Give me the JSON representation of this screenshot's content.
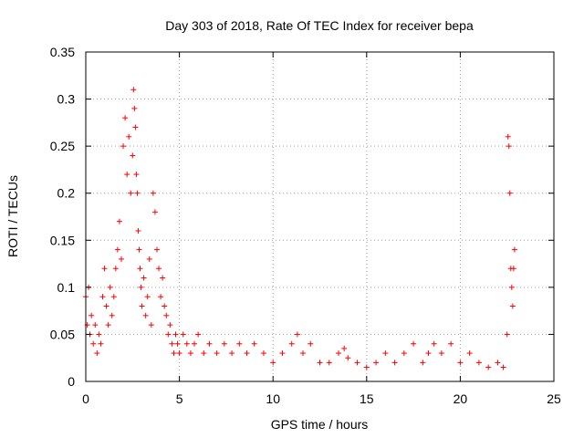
{
  "chart_data": {
    "type": "scatter",
    "title": "Day 303 of 2018, Rate Of TEC Index for receiver bepa",
    "xlabel": "GPS time / hours",
    "ylabel": "ROTI / TECUs",
    "xlim": [
      0,
      25
    ],
    "ylim": [
      0,
      0.35
    ],
    "xticks": [
      0,
      5,
      10,
      15,
      20,
      25
    ],
    "xtick_labels": [
      "0",
      "5",
      "10",
      "15",
      "20",
      "25"
    ],
    "yticks": [
      0,
      0.05,
      0.1,
      0.15,
      0.2,
      0.25,
      0.3,
      0.35
    ],
    "ytick_labels": [
      "0",
      "0.05",
      "0.1",
      "0.15",
      "0.2",
      "0.25",
      "0.3",
      "0.35"
    ],
    "grid": true,
    "marker": "+",
    "color": "#ff0000",
    "series": [
      {
        "x": [
          0.0,
          0.08,
          0.15,
          0.22,
          0.3,
          0.4,
          0.5,
          0.6,
          0.7,
          0.8,
          0.9,
          1.0,
          1.1,
          1.2,
          1.3,
          1.4,
          1.5,
          1.6,
          1.7,
          1.8,
          1.9,
          2.0,
          2.1,
          2.2,
          2.3,
          2.4,
          2.5,
          2.55,
          2.6,
          2.65,
          2.7,
          2.75,
          2.8,
          2.85,
          2.9,
          2.95,
          3.0,
          3.1,
          3.2,
          3.3,
          3.4,
          3.5,
          3.6,
          3.7,
          3.8,
          3.9,
          4.0,
          4.1,
          4.2,
          4.3,
          4.4,
          4.5,
          4.6,
          4.7,
          4.8,
          4.9,
          5.0,
          5.2,
          5.4,
          5.6,
          5.8,
          6.0,
          6.3,
          6.6,
          7.0,
          7.4,
          7.8,
          8.2,
          8.6,
          9.0,
          9.5,
          10.0,
          10.5,
          11.0,
          11.3,
          11.6,
          12.0,
          12.5,
          13.0,
          13.5,
          13.8,
          14.0,
          14.5,
          15.0,
          15.5,
          16.0,
          16.5,
          17.0,
          17.5,
          18.0,
          18.3,
          18.6,
          19.0,
          19.5,
          20.0,
          20.5,
          21.0,
          21.5,
          22.0,
          22.3,
          22.5,
          22.55,
          22.6,
          22.65,
          22.7,
          22.75,
          22.8,
          22.85,
          22.9
        ],
        "y": [
          0.09,
          0.06,
          0.1,
          0.05,
          0.07,
          0.04,
          0.06,
          0.03,
          0.05,
          0.04,
          0.09,
          0.12,
          0.08,
          0.06,
          0.1,
          0.07,
          0.09,
          0.12,
          0.14,
          0.17,
          0.13,
          0.25,
          0.28,
          0.22,
          0.26,
          0.2,
          0.24,
          0.31,
          0.29,
          0.27,
          0.22,
          0.2,
          0.16,
          0.14,
          0.12,
          0.1,
          0.08,
          0.11,
          0.07,
          0.09,
          0.13,
          0.06,
          0.2,
          0.18,
          0.14,
          0.12,
          0.09,
          0.11,
          0.08,
          0.07,
          0.05,
          0.06,
          0.04,
          0.03,
          0.05,
          0.04,
          0.03,
          0.05,
          0.04,
          0.03,
          0.04,
          0.05,
          0.03,
          0.04,
          0.03,
          0.04,
          0.03,
          0.04,
          0.03,
          0.04,
          0.03,
          0.02,
          0.03,
          0.04,
          0.05,
          0.03,
          0.04,
          0.02,
          0.02,
          0.03,
          0.035,
          0.025,
          0.02,
          0.015,
          0.02,
          0.03,
          0.02,
          0.03,
          0.04,
          0.02,
          0.03,
          0.04,
          0.03,
          0.04,
          0.02,
          0.03,
          0.02,
          0.015,
          0.02,
          0.015,
          0.05,
          0.26,
          0.25,
          0.2,
          0.12,
          0.1,
          0.08,
          0.12,
          0.14
        ]
      }
    ]
  }
}
